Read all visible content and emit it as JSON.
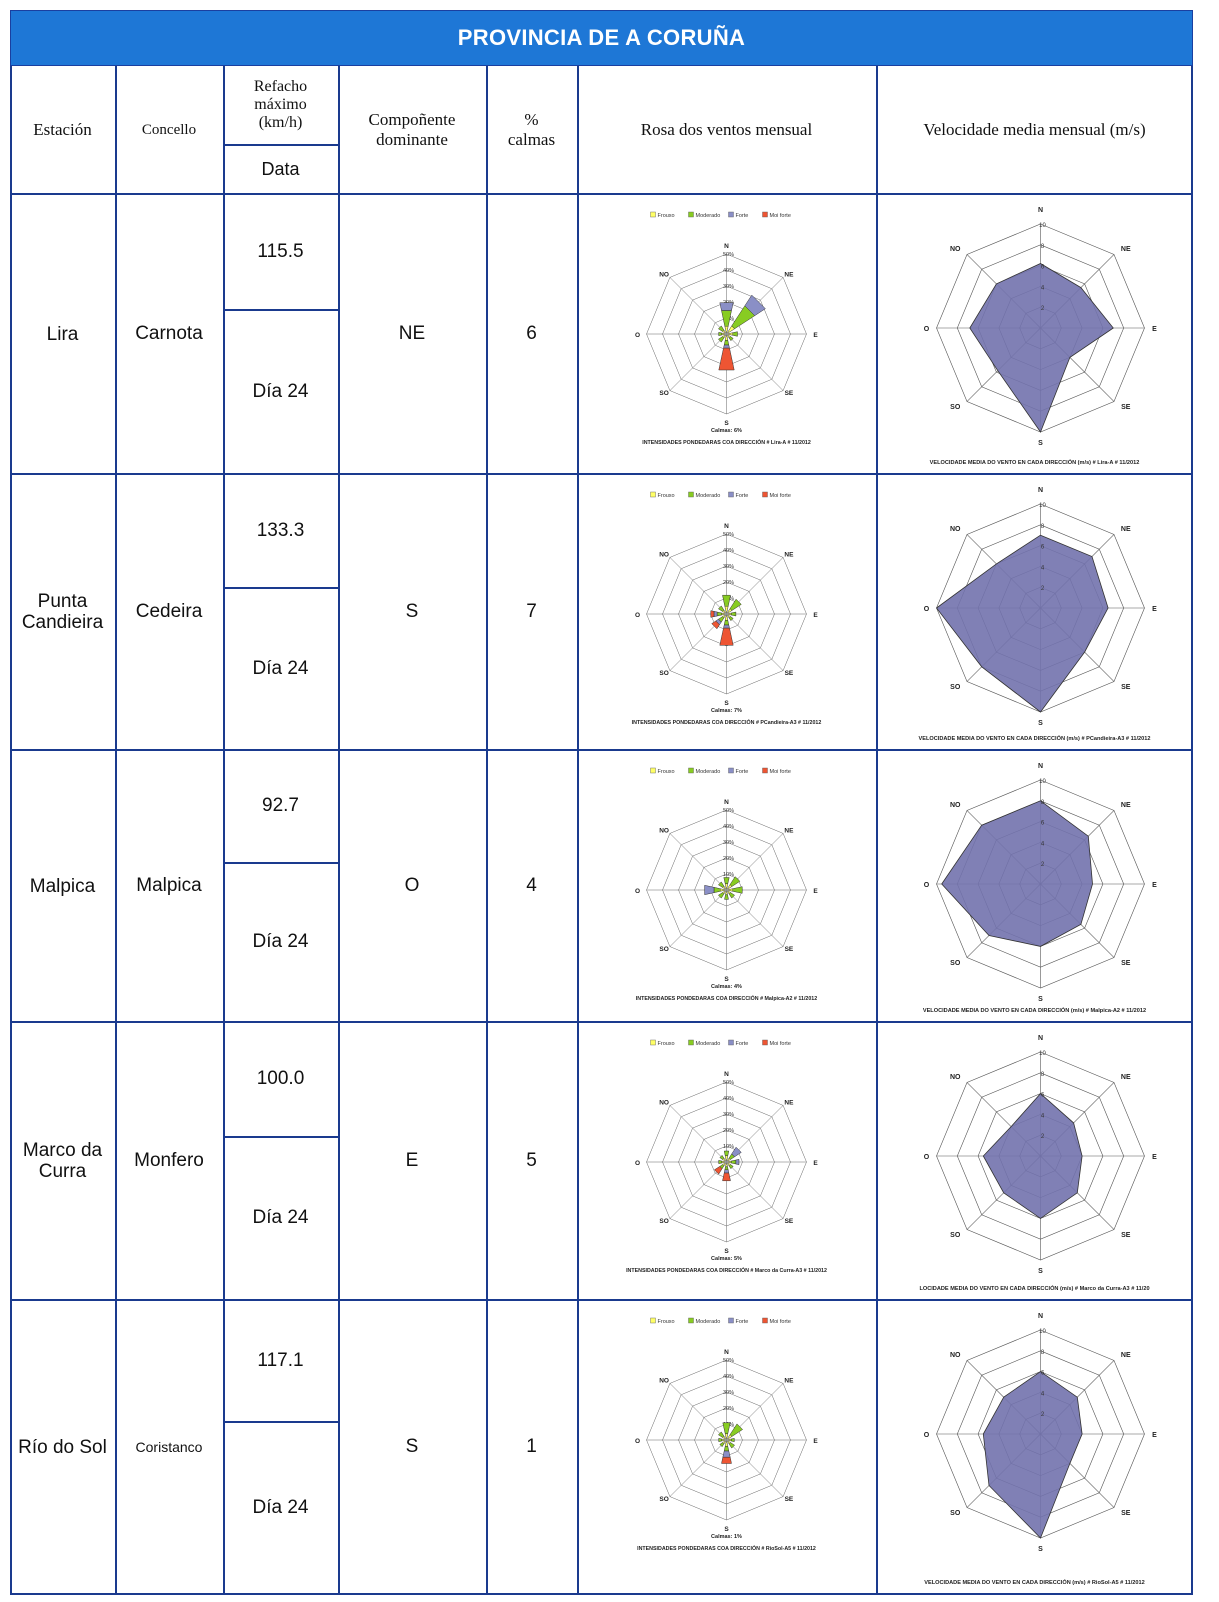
{
  "title": "PROVINCIA DE A CORUÑA",
  "headers": {
    "estacion": "Estación",
    "concello": "Concello",
    "refacho": "Refacho máximo (km/h)",
    "data": "Data",
    "componente": "Compoñente dominante",
    "calmas": "% calmas",
    "rosa": "Rosa dos ventos mensual",
    "velocidade": "Velocidade media mensual (m/s)"
  },
  "rose_legend": [
    "Frouxo",
    "Moderado",
    "Forte",
    "Moi forte"
  ],
  "rose_directions": [
    "N",
    "NE",
    "E",
    "SE",
    "S",
    "SO",
    "O",
    "NO"
  ],
  "rose_ring_labels": [
    "10%",
    "20%",
    "30%",
    "40%",
    "50%"
  ],
  "speed_ring_labels": [
    "2",
    "4",
    "6",
    "8",
    "10"
  ],
  "rows": [
    {
      "estacion": "Lira",
      "concello": "Carnota",
      "refacho": "115.5",
      "data": "Día 24",
      "componente": "NE",
      "calmas": "6",
      "rose_calmas": "Calmas: 6%",
      "rose_caption": "INTENSIDADES PONDEDARAS COA DIRECCIÓN # Lira-A # 11/2012",
      "rose_petals": [
        [
          0.04,
          0.1,
          0.05,
          0.0
        ],
        [
          0.05,
          0.15,
          0.08,
          0.0
        ],
        [
          0.03,
          0.03,
          0.0,
          0.0
        ],
        [
          0.02,
          0.02,
          0.0,
          0.0
        ],
        [
          0.03,
          0.03,
          0.02,
          0.14
        ],
        [
          0.02,
          0.03,
          0.0,
          0.0
        ],
        [
          0.02,
          0.02,
          0.0,
          0.0
        ],
        [
          0.02,
          0.03,
          0.0,
          0.0
        ]
      ],
      "speed_caption": "VELOCIDADE MEDIA DO VENTO EN CADA DIRECCIÓN (m/s) # Lira-A # 11/2012",
      "speed_values": [
        6.2,
        5.5,
        7.0,
        4.0,
        10.2,
        5.8,
        6.8,
        6.0
      ]
    },
    {
      "estacion": "Punta Candieira",
      "concello": "Cedeira",
      "refacho": "133.3",
      "data": "Día 24",
      "componente": "S",
      "calmas": "7",
      "rose_calmas": "Calmas: 7%",
      "rose_caption": "INTENSIDADES PONDEDARAS COA DIRECCIÓN # PCandieira-A3 # 11/2012",
      "rose_petals": [
        [
          0.04,
          0.07,
          0.0,
          0.0
        ],
        [
          0.03,
          0.07,
          0.0,
          0.0
        ],
        [
          0.02,
          0.03,
          0.0,
          0.0
        ],
        [
          0.02,
          0.02,
          0.0,
          0.0
        ],
        [
          0.03,
          0.03,
          0.02,
          0.11
        ],
        [
          0.02,
          0.03,
          0.02,
          0.03
        ],
        [
          0.02,
          0.03,
          0.02,
          0.02
        ],
        [
          0.02,
          0.03,
          0.0,
          0.0
        ]
      ],
      "speed_caption": "VELOCIDADE MEDIA DO VENTO EN CADA DIRECCIÓN (m/s) # PCandieira-A3 # 11/2012",
      "speed_values": [
        7.0,
        7.0,
        6.5,
        6.0,
        10.0,
        8.0,
        10.0,
        6.0
      ]
    },
    {
      "estacion": "Malpica",
      "concello": "Malpica",
      "refacho": "92.7",
      "data": "Día 24",
      "componente": "O",
      "calmas": "4",
      "rose_calmas": "Calmas: 4%",
      "rose_caption": "INTENSIDADES PONDEDARAS COA DIRECCIÓN # Malpica-A2 # 11/2012",
      "rose_petals": [
        [
          0.03,
          0.04,
          0.0,
          0.0
        ],
        [
          0.03,
          0.06,
          0.0,
          0.0
        ],
        [
          0.03,
          0.06,
          0.0,
          0.0
        ],
        [
          0.02,
          0.03,
          0.0,
          0.0
        ],
        [
          0.02,
          0.03,
          0.0,
          0.0
        ],
        [
          0.02,
          0.03,
          0.0,
          0.0
        ],
        [
          0.03,
          0.04,
          0.06,
          0.0
        ],
        [
          0.02,
          0.03,
          0.0,
          0.0
        ]
      ],
      "speed_caption": "VELOCIDADE MEDIA DO VENTO EN CADA DIRECCIÓN (m/s) # Malpica-A2 # 11/2012",
      "speed_values": [
        8.0,
        6.5,
        5.0,
        5.5,
        6.0,
        7.0,
        9.5,
        8.0
      ]
    },
    {
      "estacion": "Marco da Curra",
      "concello": "Monfero",
      "refacho": "100.0",
      "data": "Día 24",
      "componente": "E",
      "calmas": "5",
      "rose_calmas": "Calmas: 5%",
      "rose_caption": "INTENSIDADES PONDEDARAS COA DIRECCIÓN # Marco da Curra-A3 # 11/2012",
      "rose_petals": [
        [
          0.03,
          0.03,
          0.0,
          0.0
        ],
        [
          0.02,
          0.03,
          0.05,
          0.0
        ],
        [
          0.02,
          0.03,
          0.02,
          0.0
        ],
        [
          0.02,
          0.02,
          0.0,
          0.0
        ],
        [
          0.02,
          0.02,
          0.02,
          0.05
        ],
        [
          0.02,
          0.02,
          0.0,
          0.04
        ],
        [
          0.02,
          0.02,
          0.0,
          0.0
        ],
        [
          0.02,
          0.02,
          0.0,
          0.0
        ]
      ],
      "speed_caption": "LOCIDADE MEDIA DO VENTO EN CADA DIRECCIÓN (m/s) # Marco da Curra-A3 # 11/20",
      "speed_values": [
        6.0,
        4.5,
        4.0,
        5.0,
        6.0,
        5.0,
        5.5,
        4.0
      ]
    },
    {
      "estacion": "Río do Sol",
      "concello": "Coristanco",
      "refacho": "117.1",
      "data": "Día 24",
      "componente": "S",
      "calmas": "1",
      "rose_calmas": "Calmas: 1%",
      "rose_caption": "INTENSIDADES PONDEDARAS COA DIRECCIÓN # RioSol-A5 # 11/2012",
      "rose_petals": [
        [
          0.03,
          0.07,
          0.0,
          0.0
        ],
        [
          0.03,
          0.08,
          0.0,
          0.0
        ],
        [
          0.02,
          0.02,
          0.0,
          0.0
        ],
        [
          0.02,
          0.03,
          0.0,
          0.0
        ],
        [
          0.03,
          0.03,
          0.04,
          0.04
        ],
        [
          0.02,
          0.02,
          0.0,
          0.0
        ],
        [
          0.02,
          0.02,
          0.0,
          0.0
        ],
        [
          0.02,
          0.03,
          0.0,
          0.0
        ]
      ],
      "speed_caption": "VELOCIDADE MEDIA DO VENTO EN CADA DIRECCIÓN (m/s) # RioSol-A5 # 11/2012",
      "speed_values": [
        6.0,
        5.0,
        4.0,
        4.0,
        10.0,
        7.0,
        5.5,
        5.0
      ]
    }
  ],
  "colors": {
    "title_bg": "#1e77d6",
    "grid_line": "#1a3a8e",
    "frouxo": "#ffff66",
    "moderado": "#88cc22",
    "forte": "#8a8fc6",
    "moi_forte": "#ee5533",
    "speed_fill": "#7272ad"
  }
}
